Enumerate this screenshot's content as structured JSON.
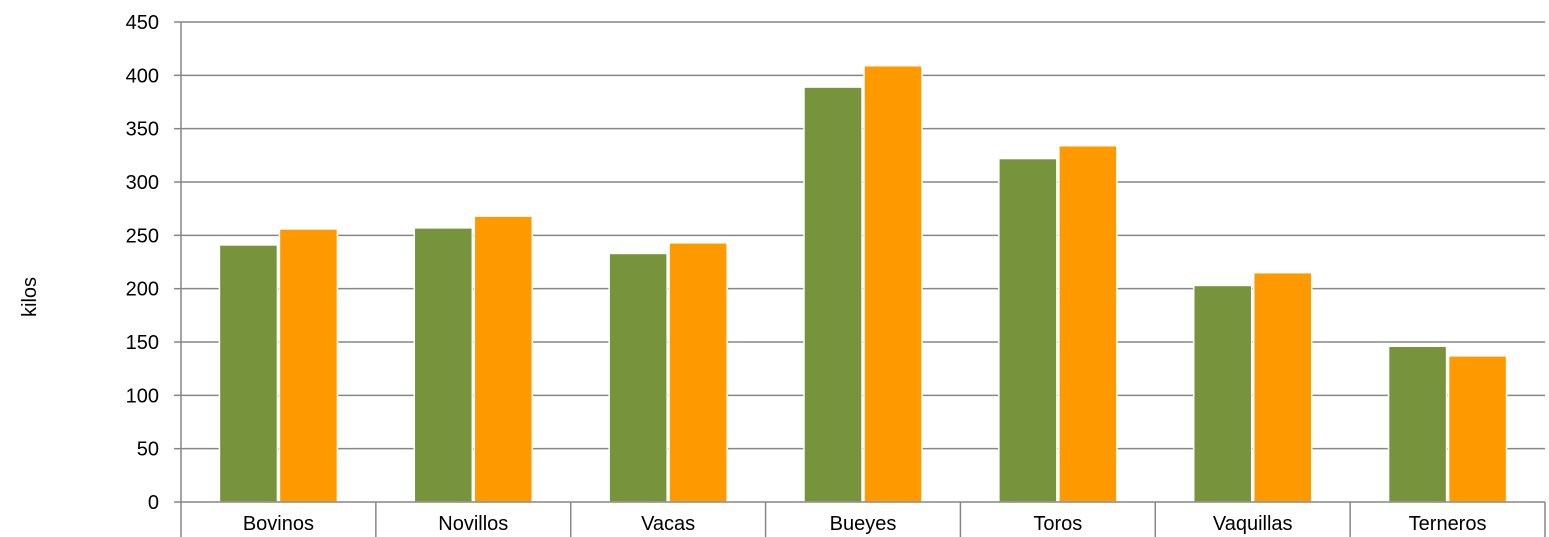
{
  "chart_data": {
    "type": "bar",
    "title": "",
    "xlabel": "",
    "ylabel": "kilos",
    "ylim": [
      0,
      450
    ],
    "ytick_step": 50,
    "yticks": [
      "0",
      "50",
      "100",
      "150",
      "200",
      "250",
      "300",
      "350",
      "400",
      "450"
    ],
    "grid": true,
    "legend": "none",
    "categories": [
      "Bovinos",
      "Novillos",
      "Vacas",
      "Bueyes",
      "Toros",
      "Vaquillas",
      "Terneros"
    ],
    "series": [
      {
        "color": "#77933c",
        "values": [
          241,
          257,
          233,
          389,
          322,
          203,
          146
        ]
      },
      {
        "color": "#ff9900",
        "values": [
          256,
          268,
          243,
          409,
          334,
          215,
          137
        ]
      }
    ]
  }
}
